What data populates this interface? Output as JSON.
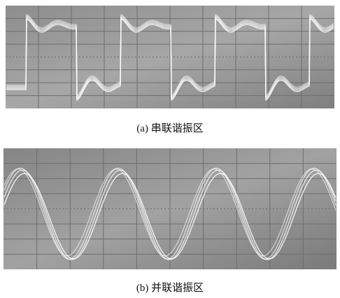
{
  "panels": [
    {
      "caption": "(a) 串联谐振区"
    },
    {
      "caption": "(b) 并联谐振区"
    }
  ]
}
